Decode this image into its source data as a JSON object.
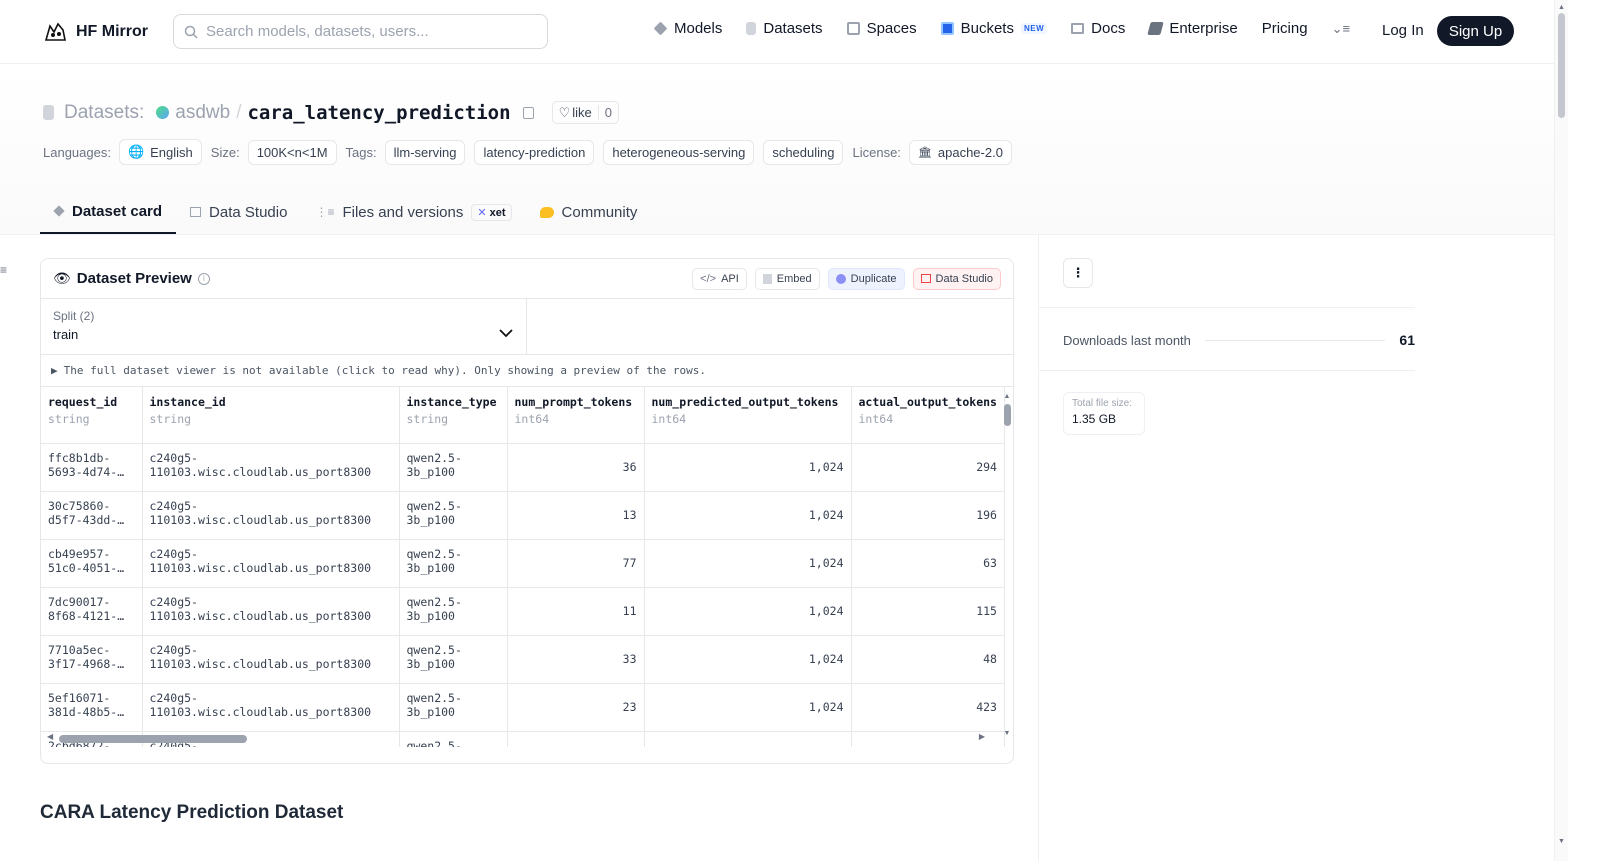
{
  "nav": {
    "brand": "HF Mirror",
    "search_placeholder": "Search models, datasets, users...",
    "links": [
      {
        "label": "Models",
        "icon": "models-icon",
        "color": "#9ca3af"
      },
      {
        "label": "Datasets",
        "icon": "datasets-icon",
        "color": "#d1d5db"
      },
      {
        "label": "Spaces",
        "icon": "spaces-icon",
        "color": "#9ca3af"
      },
      {
        "label": "Buckets",
        "icon": "buckets-icon",
        "color": "#2563eb",
        "badge": "NEW"
      },
      {
        "label": "Docs",
        "icon": "docs-icon",
        "color": "#9ca3af"
      },
      {
        "label": "Enterprise",
        "icon": "enterprise-icon",
        "color": "#6b7280"
      },
      {
        "label": "Pricing"
      }
    ],
    "login": "Log In",
    "signup": "Sign Up"
  },
  "dataset": {
    "prefix": "Datasets:",
    "owner": "asdwb",
    "name": "cara_latency_prediction",
    "like_label": "like",
    "like_count": "0"
  },
  "tags": {
    "languages_label": "Languages:",
    "language": "English",
    "size_label": "Size:",
    "size": "100K<n<1M",
    "tags_label": "Tags:",
    "tag_list": [
      "llm-serving",
      "latency-prediction",
      "heterogeneous-serving",
      "scheduling"
    ],
    "license_label": "License:",
    "license": "apache-2.0"
  },
  "tabs": [
    {
      "label": "Dataset card",
      "active": true
    },
    {
      "label": "Data Studio"
    },
    {
      "label": "Files and versions",
      "badge": "xet"
    },
    {
      "label": "Community"
    }
  ],
  "preview": {
    "title": "Dataset Preview",
    "buttons": {
      "api": "API",
      "embed": "Embed",
      "duplicate": "Duplicate",
      "studio": "Data Studio"
    },
    "split_label": "Split (2)",
    "split_value": "train",
    "notice": "The full dataset viewer is not available (click to read why). Only showing a preview of the rows.",
    "columns": [
      {
        "name": "request_id",
        "type": "string"
      },
      {
        "name": "instance_id",
        "type": "string"
      },
      {
        "name": "instance_type",
        "type": "string"
      },
      {
        "name": "num_prompt_tokens",
        "type": "int64"
      },
      {
        "name": "num_predicted_output_tokens",
        "type": "int64"
      },
      {
        "name": "actual_output_tokens",
        "type": "int64"
      }
    ],
    "rows": [
      [
        "ffc8b1db-5693-4d74-…",
        "c240g5-110103.wisc.cloudlab.us_port8300",
        "qwen2.5-3b_p100",
        "36",
        "1,024",
        "294"
      ],
      [
        "30c75860-d5f7-43dd-…",
        "c240g5-110103.wisc.cloudlab.us_port8300",
        "qwen2.5-3b_p100",
        "13",
        "1,024",
        "196"
      ],
      [
        "cb49e957-51c0-4051-…",
        "c240g5-110103.wisc.cloudlab.us_port8300",
        "qwen2.5-3b_p100",
        "77",
        "1,024",
        "63"
      ],
      [
        "7dc90017-8f68-4121-…",
        "c240g5-110103.wisc.cloudlab.us_port8300",
        "qwen2.5-3b_p100",
        "11",
        "1,024",
        "115"
      ],
      [
        "7710a5ec-3f17-4968-…",
        "c240g5-110103.wisc.cloudlab.us_port8300",
        "qwen2.5-3b_p100",
        "33",
        "1,024",
        "48"
      ],
      [
        "5ef16071-381d-48b5-…",
        "c240g5-110103.wisc.cloudlab.us_port8300",
        "qwen2.5-3b_p100",
        "23",
        "1,024",
        "423"
      ],
      [
        "2cbd6872-",
        "c240g5-",
        "qwen2.5-",
        "",
        "",
        ""
      ]
    ]
  },
  "sidebar": {
    "downloads_label": "Downloads last month",
    "downloads_value": "61",
    "filesize_label": "Total file size:",
    "filesize_value": "1.35 GB"
  },
  "card_title": "CARA Latency Prediction Dataset"
}
